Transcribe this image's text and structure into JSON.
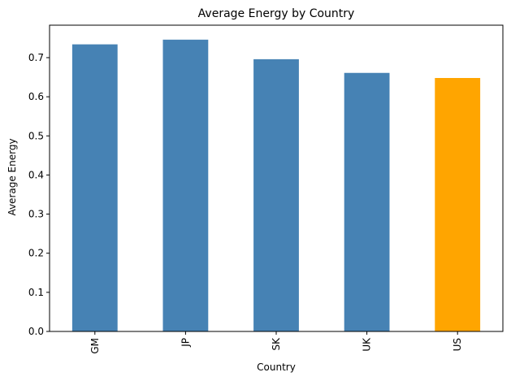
{
  "chart_data": {
    "type": "bar",
    "title": "Average Energy by Country",
    "xlabel": "Country",
    "ylabel": "Average Energy",
    "categories": [
      "GM",
      "JP",
      "SK",
      "UK",
      "US"
    ],
    "values": [
      0.734,
      0.746,
      0.696,
      0.661,
      0.648
    ],
    "bar_colors": [
      "#4682b4",
      "#4682b4",
      "#4682b4",
      "#4682b4",
      "#ffa500"
    ],
    "ylim": [
      0,
      0.783
    ],
    "yticks": [
      0.0,
      0.1,
      0.2,
      0.3,
      0.4,
      0.5,
      0.6,
      0.7
    ],
    "ytick_labels": [
      "0.0",
      "0.1",
      "0.2",
      "0.3",
      "0.4",
      "0.5",
      "0.6",
      "0.7"
    ],
    "grid": false,
    "legend": "none"
  }
}
